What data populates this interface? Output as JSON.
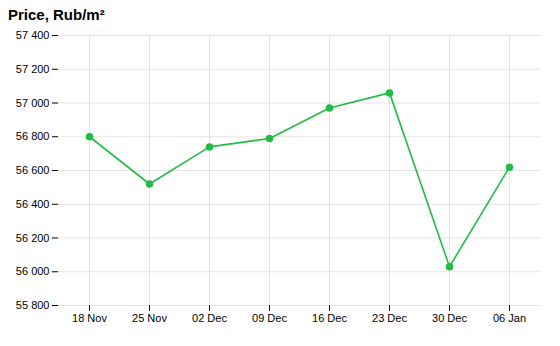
{
  "chart_data": {
    "type": "line",
    "title": "Price, Rub/m²",
    "categories": [
      "18 Nov",
      "25 Nov",
      "02 Dec",
      "09 Dec",
      "16 Dec",
      "23 Dec",
      "30 Dec",
      "06 Jan"
    ],
    "values": [
      56800,
      56520,
      56740,
      56790,
      56970,
      57060,
      56030,
      56620
    ],
    "color": "#22bb44",
    "marker": "circle",
    "ylim": [
      55800,
      57400
    ],
    "yticks": [
      {
        "value": 55800,
        "label": "55 800"
      },
      {
        "value": 56000,
        "label": "56 000"
      },
      {
        "value": 56200,
        "label": "56 200"
      },
      {
        "value": 56400,
        "label": "56 400"
      },
      {
        "value": 56600,
        "label": "56 600"
      },
      {
        "value": 56800,
        "label": "56 800"
      },
      {
        "value": 57000,
        "label": "57 000"
      },
      {
        "value": 57200,
        "label": "57 200"
      },
      {
        "value": 57400,
        "label": "57 400"
      }
    ],
    "grid": true
  }
}
